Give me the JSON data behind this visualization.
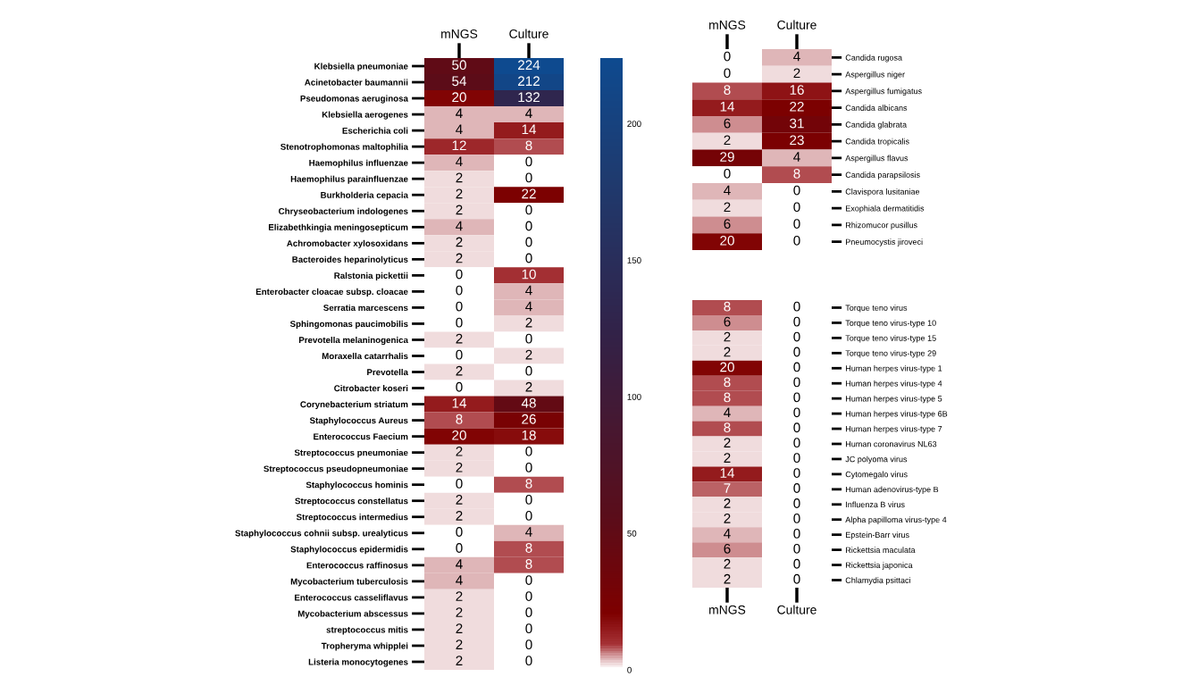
{
  "chart_data": [
    {
      "type": "heatmap",
      "categories": [
        "mNGS",
        "Culture"
      ],
      "data_labels": true,
      "clim": [
        0,
        224
      ],
      "cticks": [
        0,
        50,
        100,
        150,
        200
      ],
      "y_categories": [
        "Klebsiella pneumoniae",
        "Acinetobacter baumannii",
        "Pseudomonas aeruginosa",
        "Klebsiella aerogenes",
        "Escherichia coli",
        "Stenotrophomonas maltophilia",
        "Haemophilus influenzae",
        "Haemophilus parainfluenzae",
        "Burkholderia cepacia",
        "Chryseobacterium indologenes",
        "Elizabethkingia meningosepticum",
        "Achromobacter xylosoxidans",
        "Bacteroides heparinolyticus",
        "Ralstonia pickettii",
        "Enterobacter cloacae subsp. cloacae",
        "Serratia marcescens",
        "Sphingomonas paucimobilis",
        "Prevotella melaninogenica",
        "Moraxella catarrhalis",
        "Prevotella",
        "Citrobacter koseri",
        "Corynebacterium striatum",
        "Staphylococcus Aureus",
        "Enterococcus Faecium",
        "Streptococcus pneumoniae",
        "Streptococcus pseudopneumoniae",
        "Staphylococcus hominis",
        "Streptococcus constellatus",
        "Streptococcus intermedius",
        "Staphylococcus cohnii subsp. urealyticus",
        "Staphylococcus epidermidis",
        "Enterococcus raffinosus",
        "Mycobacterium tuberculosis",
        "Enterococcus casseliflavus",
        "Mycobacterium abscessus",
        "streptococcus mitis",
        "Tropheryma whipplei",
        "Listeria monocytogenes"
      ],
      "cells": [
        [
          50,
          224
        ],
        [
          54,
          212
        ],
        [
          20,
          132
        ],
        [
          4,
          4
        ],
        [
          4,
          14
        ],
        [
          12,
          8
        ],
        [
          4,
          0
        ],
        [
          2,
          0
        ],
        [
          2,
          22
        ],
        [
          2,
          0
        ],
        [
          4,
          0
        ],
        [
          2,
          0
        ],
        [
          2,
          0
        ],
        [
          0,
          10
        ],
        [
          0,
          4
        ],
        [
          0,
          4
        ],
        [
          0,
          2
        ],
        [
          2,
          0
        ],
        [
          0,
          2
        ],
        [
          2,
          0
        ],
        [
          0,
          2
        ],
        [
          14,
          48
        ],
        [
          8,
          26
        ],
        [
          20,
          18
        ],
        [
          2,
          0
        ],
        [
          2,
          0
        ],
        [
          0,
          8
        ],
        [
          2,
          0
        ],
        [
          2,
          0
        ],
        [
          0,
          4
        ],
        [
          0,
          8
        ],
        [
          4,
          8
        ],
        [
          4,
          0
        ],
        [
          2,
          0
        ],
        [
          2,
          0
        ],
        [
          2,
          0
        ],
        [
          2,
          0
        ],
        [
          2,
          0
        ]
      ]
    },
    {
      "type": "heatmap",
      "categories": [
        "mNGS",
        "Culture"
      ],
      "data_labels": true,
      "y_categories": [
        "Candida rugosa",
        "Aspergillus niger",
        "Aspergillus fumigatus",
        "Candida albicans",
        "Candida glabrata",
        "Candida tropicalis",
        "Aspergillus flavus",
        "Candida parapsilosis",
        "Clavispora lusitaniae",
        "Exophiala dermatitidis",
        "Rhizomucor pusillus",
        "Pneumocystis jiroveci"
      ],
      "cells": [
        [
          0,
          4
        ],
        [
          0,
          2
        ],
        [
          8,
          16
        ],
        [
          14,
          22
        ],
        [
          6,
          31
        ],
        [
          2,
          23
        ],
        [
          29,
          4
        ],
        [
          0,
          8
        ],
        [
          4,
          0
        ],
        [
          2,
          0
        ],
        [
          6,
          0
        ],
        [
          20,
          0
        ]
      ]
    },
    {
      "type": "heatmap",
      "categories": [
        "mNGS",
        "Culture"
      ],
      "data_labels": true,
      "y_categories": [
        "Torque teno virus",
        "Torque teno virus-type 10",
        "Torque teno virus-type 15",
        "Torque teno virus-type 29",
        "Human herpes virus-type 1",
        "Human herpes virus-type 4",
        "Human herpes virus-type 5",
        "Human herpes virus-type 6B",
        "Human herpes virus-type 7",
        "Human coronavirus NL63",
        "JC polyoma virus",
        "Cytomegalo virus",
        "Human adenovirus-type B",
        "Influenza B virus",
        "Alpha papilloma virus-type 4",
        "Epstein-Barr virus",
        "Rickettsia maculata",
        "Rickettsia japonica",
        "Chlamydia psittaci"
      ],
      "cells": [
        [
          8,
          0
        ],
        [
          6,
          0
        ],
        [
          2,
          0
        ],
        [
          2,
          0
        ],
        [
          20,
          0
        ],
        [
          8,
          0
        ],
        [
          8,
          0
        ],
        [
          4,
          0
        ],
        [
          8,
          0
        ],
        [
          2,
          0
        ],
        [
          2,
          0
        ],
        [
          14,
          0
        ],
        [
          7,
          0
        ],
        [
          2,
          0
        ],
        [
          2,
          0
        ],
        [
          4,
          0
        ],
        [
          6,
          0
        ],
        [
          2,
          0
        ],
        [
          2,
          0
        ]
      ]
    }
  ]
}
